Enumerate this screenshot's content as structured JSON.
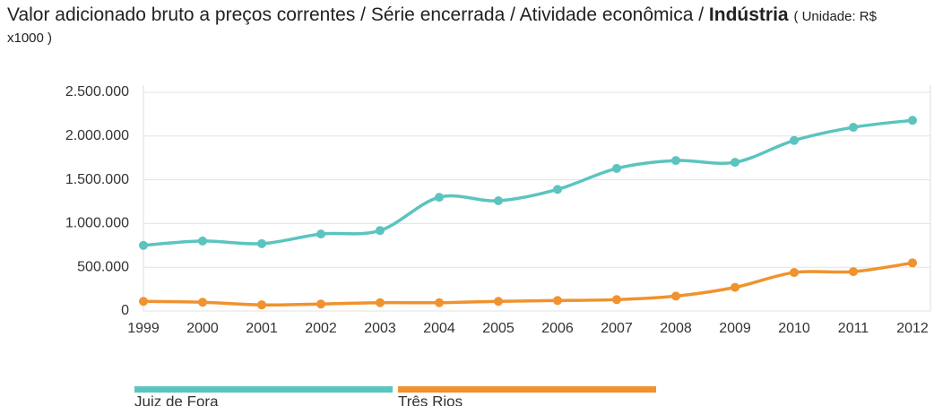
{
  "chart_data": {
    "type": "line",
    "title": "Valor adicionado bruto a preços correntes / Série encerrada / Atividade econômica /",
    "title_emphasis": "Indústria",
    "subtitle": "( Unidade: R$ x1000 )",
    "categories": [
      "1999",
      "2000",
      "2001",
      "2002",
      "2003",
      "2004",
      "2005",
      "2006",
      "2007",
      "2008",
      "2009",
      "2010",
      "2011",
      "2012"
    ],
    "series": [
      {
        "name": "Juiz de Fora",
        "color": "#5bc4bf",
        "values": [
          750000,
          800000,
          770000,
          880000,
          920000,
          1300000,
          1260000,
          1390000,
          1630000,
          1720000,
          1700000,
          1950000,
          2100000,
          2180000
        ]
      },
      {
        "name": "Três Rios",
        "color": "#f0922e",
        "values": [
          110000,
          100000,
          70000,
          80000,
          95000,
          95000,
          110000,
          120000,
          130000,
          170000,
          270000,
          440000,
          450000,
          550000
        ]
      }
    ],
    "ylim": [
      0,
      2500000
    ],
    "yticks": [
      0,
      {
        "value": 500000,
        "label": "500.000"
      },
      {
        "value": 1000000,
        "label": "1.000.000"
      },
      {
        "value": 1500000,
        "label": "1.500.000"
      },
      {
        "value": 2000000,
        "label": "2.000.000"
      },
      {
        "value": 2500000,
        "label": "2.500.000"
      }
    ],
    "grid": true,
    "legend": "bottom"
  }
}
